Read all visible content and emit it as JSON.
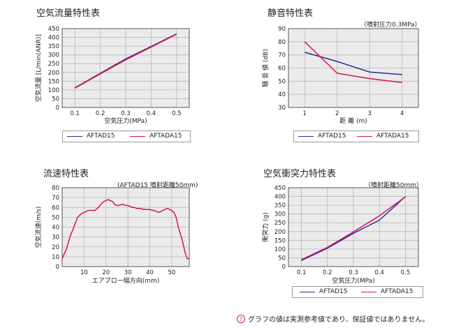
{
  "colors": {
    "series_a": "#2b2b8c",
    "series_b": "#d4145a",
    "grid": "#b8b8b8",
    "plot_bg": "#ebebeb"
  },
  "panels": {
    "airflow": {
      "title": "空気流量特性表"
    },
    "noise": {
      "title": "静音特性表",
      "note": "（噴射圧力0.3MPa）"
    },
    "velocity": {
      "title": "流速特性表",
      "note": "(AFTAD15 噴射距離50mm)"
    },
    "impact": {
      "title": "空気衝突力特性表",
      "note": "（噴射距離50mm）"
    }
  },
  "legend": {
    "a": "AFTAD15",
    "b": "AFTADA15"
  },
  "footer": {
    "icon": "hint-icon",
    "text": "グラフの値は実測参考値であり、保証値ではありません。"
  },
  "chart_data": [
    {
      "id": "airflow",
      "type": "line",
      "title": "空気流量特性表",
      "xlabel": "空気圧力(MPa)",
      "ylabel": "空気流量 [L/min(ANR)]",
      "xlim": [
        0.05,
        0.55
      ],
      "ylim": [
        0,
        450
      ],
      "xticks": [
        0.1,
        0.2,
        0.3,
        0.4,
        0.5
      ],
      "xtick_labels": [
        "0.1",
        "0.2",
        "0.3",
        "0.4",
        "0.5"
      ],
      "yticks": [
        0,
        50,
        100,
        150,
        200,
        250,
        300,
        350,
        400,
        450
      ],
      "grid": true,
      "legend": "below",
      "series": [
        {
          "name": "AFTAD15",
          "color": "#2b2b8c",
          "x": [
            0.1,
            0.2,
            0.3,
            0.4,
            0.5
          ],
          "y": [
            112,
            195,
            277,
            348,
            420
          ]
        },
        {
          "name": "AFTADA15",
          "color": "#d4145a",
          "x": [
            0.1,
            0.2,
            0.3,
            0.4,
            0.5
          ],
          "y": [
            110,
            192,
            272,
            345,
            418
          ]
        }
      ]
    },
    {
      "id": "noise",
      "type": "line",
      "title": "静音特性表",
      "xlabel": "距 離 (m)",
      "ylabel": "騒 音 値 (dB)",
      "xlim": [
        0.5,
        4.5
      ],
      "ylim": [
        30,
        90
      ],
      "xticks": [
        1,
        2,
        3,
        4
      ],
      "xtick_labels": [
        "1",
        "2",
        "3",
        "4"
      ],
      "yticks": [
        30,
        40,
        50,
        60,
        70,
        80,
        90
      ],
      "grid": true,
      "legend": "below",
      "series": [
        {
          "name": "AFTAD15",
          "color": "#2b2b8c",
          "x": [
            1,
            2,
            3,
            4
          ],
          "y": [
            72,
            65,
            57,
            55
          ]
        },
        {
          "name": "AFTADA15",
          "color": "#d4145a",
          "x": [
            1,
            2,
            3,
            4
          ],
          "y": [
            80,
            56,
            52,
            49
          ]
        }
      ]
    },
    {
      "id": "velocity",
      "type": "line",
      "title": "流速特性表",
      "xlabel": "エアブロー幅方向(mm)",
      "ylabel": "空気流速(m/s)",
      "xlim": [
        0,
        58
      ],
      "ylim": [
        0,
        80
      ],
      "xticks": [
        10,
        20,
        30,
        40,
        50
      ],
      "xtick_labels": [
        "10",
        "20",
        "30",
        "40",
        "50"
      ],
      "yticks": [
        0,
        10,
        20,
        30,
        40,
        50,
        60,
        70,
        80
      ],
      "grid": true,
      "legend": "none",
      "series": [
        {
          "color": "#d4145a",
          "x": [
            0,
            1,
            2,
            3,
            4,
            5,
            6,
            7,
            8,
            9,
            10,
            11,
            12,
            13,
            14,
            15,
            16,
            17,
            18,
            19,
            20,
            21,
            22,
            23,
            24,
            25,
            26,
            27,
            28,
            29,
            30,
            31,
            32,
            33,
            34,
            35,
            36,
            37,
            38,
            39,
            40,
            41,
            42,
            43,
            44,
            45,
            46,
            47,
            48,
            49,
            50,
            51,
            52,
            53,
            54,
            55,
            56,
            57,
            58
          ],
          "y": [
            8,
            13,
            18,
            26,
            33,
            38,
            44,
            50,
            52,
            54,
            55,
            56,
            57,
            57,
            57,
            57,
            59,
            61,
            64,
            66,
            67,
            68,
            67,
            66,
            63,
            62,
            62,
            63,
            63,
            62,
            62,
            61,
            60,
            60,
            59,
            59,
            59,
            58,
            58,
            58,
            58,
            57,
            57,
            56,
            55,
            56,
            57,
            58,
            59,
            58,
            57,
            55,
            50,
            40,
            33,
            25,
            15,
            8,
            8
          ]
        }
      ]
    },
    {
      "id": "impact",
      "type": "line",
      "title": "空気衝突力特性表",
      "xlabel": "空気圧力(MPa)",
      "ylabel": "衝突力 (g)",
      "xlim": [
        0.05,
        0.55
      ],
      "ylim": [
        0,
        450
      ],
      "xticks": [
        0.1,
        0.2,
        0.3,
        0.4,
        0.5
      ],
      "xtick_labels": [
        "0.1",
        "0.2",
        "0.3",
        "0.4",
        "0.5"
      ],
      "yticks": [
        0,
        50,
        100,
        150,
        200,
        250,
        300,
        350,
        400,
        450
      ],
      "grid": true,
      "legend": "below",
      "series": [
        {
          "name": "AFTAD15",
          "color": "#2b2b8c",
          "x": [
            0.1,
            0.2,
            0.3,
            0.4,
            0.5
          ],
          "y": [
            35,
            105,
            190,
            265,
            400
          ]
        },
        {
          "name": "AFTADA15",
          "color": "#d4145a",
          "x": [
            0.1,
            0.2,
            0.3,
            0.4,
            0.5
          ],
          "y": [
            40,
            110,
            198,
            290,
            398
          ]
        }
      ]
    }
  ]
}
